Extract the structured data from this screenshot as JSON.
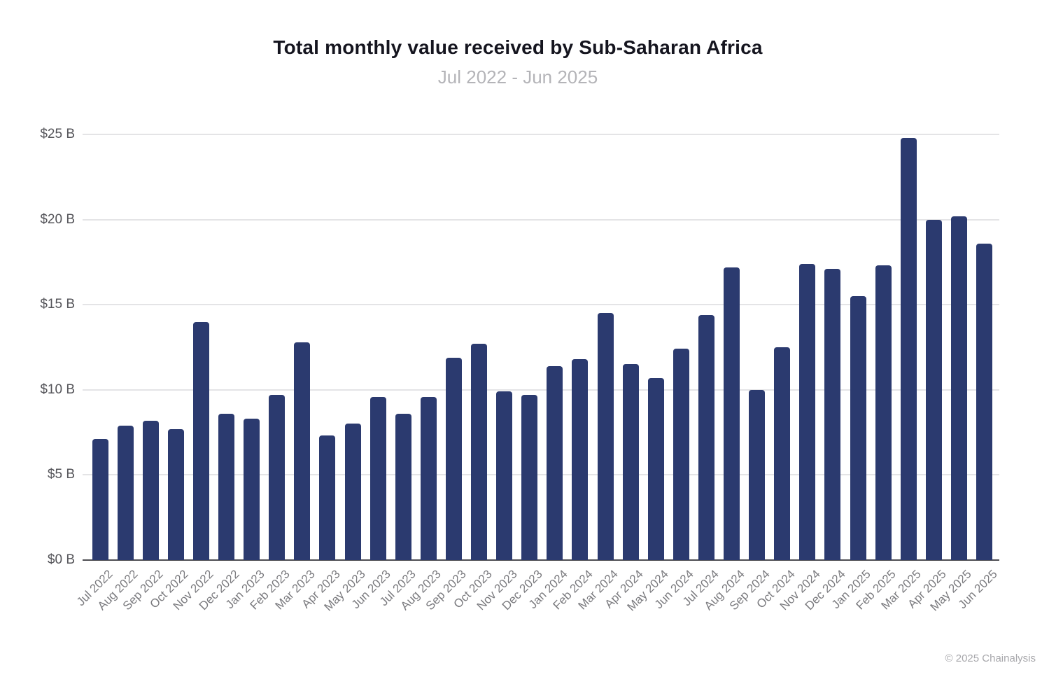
{
  "chart_data": {
    "type": "bar",
    "title": "Total monthly value received by Sub-Saharan Africa",
    "subtitle": "Jul 2022 - Jun 2025",
    "xlabel": "",
    "ylabel": "",
    "categories": [
      "Jul 2022",
      "Aug 2022",
      "Sep 2022",
      "Oct 2022",
      "Nov 2022",
      "Dec 2022",
      "Jan 2023",
      "Feb 2023",
      "Mar 2023",
      "Apr 2023",
      "May 2023",
      "Jun 2023",
      "Jul 2023",
      "Aug 2023",
      "Sep 2023",
      "Oct 2023",
      "Nov 2023",
      "Dec 2023",
      "Jan 2024",
      "Feb 2024",
      "Mar 2024",
      "Apr 2024",
      "May 2024",
      "Jun 2024",
      "Jul 2024",
      "Aug 2024",
      "Sep 2024",
      "Oct 2024",
      "Nov 2024",
      "Dec 2024",
      "Jan 2025",
      "Feb 2025",
      "Mar 2025",
      "Apr 2025",
      "May 2025",
      "Jun 2025"
    ],
    "values": [
      7.1,
      7.9,
      8.2,
      7.7,
      14.0,
      8.6,
      8.3,
      9.7,
      12.8,
      7.3,
      8.0,
      9.6,
      8.6,
      9.6,
      11.9,
      12.7,
      9.9,
      9.7,
      11.4,
      11.8,
      14.5,
      11.5,
      10.7,
      12.4,
      14.4,
      17.2,
      10.0,
      12.5,
      17.4,
      17.1,
      15.5,
      17.3,
      24.8,
      20.0,
      20.2,
      18.6
    ],
    "value_unit_note": "$ billions as shown on y-axis",
    "ylim": [
      0,
      25
    ],
    "y_ticks": [
      0,
      5,
      10,
      15,
      20,
      25
    ],
    "y_tick_labels": [
      "$0 B",
      "$5 B",
      "$10 B",
      "$15 B",
      "$20 B",
      "$25 B"
    ],
    "grid": true,
    "legend": "none",
    "bar_color": "#2b3a6f"
  },
  "footer": {
    "copyright": "© 2025 Chainalysis"
  }
}
